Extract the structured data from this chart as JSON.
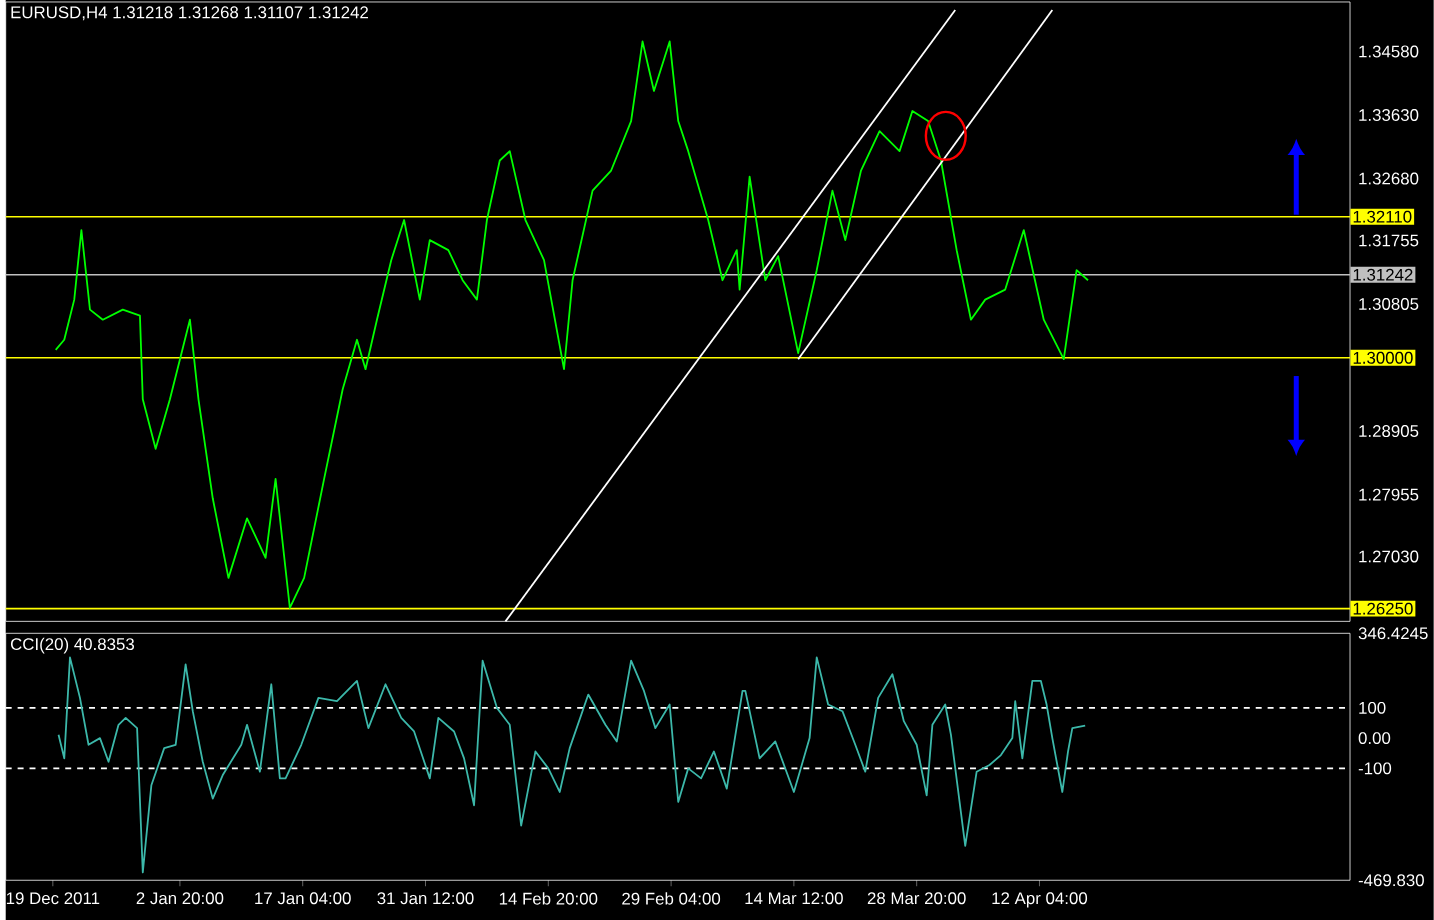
{
  "chart_data": [
    {
      "type": "line",
      "title": "EURUSD,H4  1.31218 1.31268 1.31107 1.31242",
      "xlim": [
        "2011-12-13T12:00",
        "2012-05-18T10:00"
      ],
      "ylim": [
        1.2606,
        1.3532
      ],
      "tick_labels": "y",
      "yticks": [
        {
          "value": 1.3458,
          "label": "1.34580"
        },
        {
          "value": 1.3363,
          "label": "1.33630"
        },
        {
          "value": 1.3268,
          "label": "1.32680"
        },
        {
          "value": 1.31755,
          "label": "1.31755"
        },
        {
          "value": 1.30805,
          "label": "1.30805"
        },
        {
          "value": 1.28905,
          "label": "1.28905"
        },
        {
          "value": 1.27955,
          "label": "1.27955"
        },
        {
          "value": 1.2703,
          "label": "1.27030"
        }
      ],
      "ref_lines": [
        {
          "axis": "y",
          "value": 1.3211,
          "label": "1.32110",
          "color": "#ffff00"
        },
        {
          "axis": "y",
          "value": 1.3,
          "label": "1.30000",
          "color": "#ffff00"
        },
        {
          "axis": "y",
          "value": 1.2625,
          "label": "1.26250",
          "color": "#ffff00"
        },
        {
          "axis": "y",
          "value": 1.31242,
          "label": "1.31242",
          "color": "#c0c0c0"
        }
      ],
      "series": [
        {
          "color": "#00ff00",
          "x": [
            "2011-12-19T08:00",
            "2011-12-20T08:00",
            "2011-12-21T12:00",
            "2011-12-22T08:00",
            "2011-12-23T08:00",
            "2011-12-24T20:00",
            "2011-12-27T04:00",
            "2011-12-29T04:00",
            "2011-12-29T12:00",
            "2011-12-31T00:00",
            "2012-01-01T16:00",
            "2012-01-04T00:00",
            "2012-01-05T00:00",
            "2012-01-06T16:00",
            "2012-01-08T12:00",
            "2012-01-10T16:00",
            "2012-01-12T20:00",
            "2012-01-14T00:00",
            "2012-01-15T16:00",
            "2012-01-17T08:00",
            "2012-01-19T16:00",
            "2012-01-21T20:00",
            "2012-01-23T12:00",
            "2012-01-24T12:00",
            "2012-01-25T20:00",
            "2012-01-27T12:00",
            "2012-01-29T00:00",
            "2012-01-30T20:00",
            "2012-02-01T00:00",
            "2012-02-03T04:00",
            "2012-02-04T20:00",
            "2012-02-06T12:00",
            "2012-02-07T16:00",
            "2012-02-09T04:00",
            "2012-02-10T08:00",
            "2012-02-12T04:00",
            "2012-02-14T08:00",
            "2012-02-16T16:00",
            "2012-02-17T16:00",
            "2012-02-20T00:00",
            "2012-02-22T04:00",
            "2012-02-24T12:00",
            "2012-02-25T20:00",
            "2012-02-27T04:00",
            "2012-02-29T00:00",
            "2012-03-01T00:00",
            "2012-03-02T04:00",
            "2012-03-04T12:00",
            "2012-03-06T04:00",
            "2012-03-07T20:00",
            "2012-03-08T04:00",
            "2012-03-09T08:00",
            "2012-03-11T04:00",
            "2012-03-12T16:00",
            "2012-03-15T00:00",
            "2012-03-17T04:00",
            "2012-03-19T00:00",
            "2012-03-20T12:00",
            "2012-03-22T08:00",
            "2012-03-24T12:00",
            "2012-03-26T20:00",
            "2012-03-28T08:00",
            "2012-03-30T04:00",
            "2012-03-31T16:00",
            "2012-04-02T12:00",
            "2012-04-04T04:00",
            "2012-04-05T20:00",
            "2012-04-08T04:00",
            "2012-04-10T08:00",
            "2012-04-12T16:00",
            "2012-04-15T00:00",
            "2012-04-16T12:00",
            "2012-04-17T20:00"
          ],
          "values": [
            1.3012,
            1.3027,
            1.3087,
            1.3191,
            1.3072,
            1.3057,
            1.3072,
            1.3063,
            1.2938,
            1.2864,
            1.2938,
            1.3057,
            1.2938,
            1.279,
            1.2671,
            1.276,
            1.2701,
            1.2819,
            1.2626,
            1.2671,
            1.2819,
            1.2953,
            1.3027,
            1.2983,
            1.3057,
            1.3146,
            1.3206,
            1.3087,
            1.3176,
            1.3161,
            1.3116,
            1.3087,
            1.3206,
            1.3295,
            1.3309,
            1.3206,
            1.3146,
            1.2983,
            1.3116,
            1.325,
            1.328,
            1.3354,
            1.3473,
            1.3399,
            1.3473,
            1.3354,
            1.3309,
            1.3206,
            1.3116,
            1.3161,
            1.3102,
            1.3271,
            1.3116,
            1.3152,
            1.3007,
            1.3131,
            1.325,
            1.3176,
            1.328,
            1.3339,
            1.3309,
            1.3369,
            1.3354,
            1.3295,
            1.3161,
            1.3057,
            1.3087,
            1.3102,
            1.3191,
            1.3057,
            1.2998,
            1.3131,
            1.3116
          ]
        },
        {
          "color": "#ffffff",
          "x": [
            "2012-02-09T20:00",
            "2012-04-02T08:00"
          ],
          "values": [
            1.2606,
            1.352
          ]
        },
        {
          "color": "#ffffff",
          "x": [
            "2012-03-15T00:00",
            "2012-04-13T16:00"
          ],
          "values": [
            1.2998,
            1.352
          ]
        }
      ]
    },
    {
      "type": "line",
      "title": "CCI(20) 40.8353",
      "xlim": [
        "2011-12-13T12:00",
        "2012-05-18T10:00"
      ],
      "ylim": [
        -469.83,
        346.4245
      ],
      "xticks": [
        {
          "value": "2011-12-19T00:00",
          "label": "19 Dec 2011"
        },
        {
          "value": "2012-01-02T20:00",
          "label": "2 Jan 20:00"
        },
        {
          "value": "2012-01-17T04:00",
          "label": "17 Jan 04:00"
        },
        {
          "value": "2012-01-31T12:00",
          "label": "31 Jan 12:00"
        },
        {
          "value": "2012-02-14T20:00",
          "label": "14 Feb 20:00"
        },
        {
          "value": "2012-02-29T04:00",
          "label": "29 Feb 04:00"
        },
        {
          "value": "2012-03-14T12:00",
          "label": "14 Mar 12:00"
        },
        {
          "value": "2012-03-28T20:00",
          "label": "28 Mar 20:00"
        },
        {
          "value": "2012-04-12T04:00",
          "label": "12 Apr 04:00"
        }
      ],
      "yticks": [
        {
          "value": 346.4245,
          "label": "346.4245"
        },
        100,
        {
          "value": 0,
          "label": "0.00"
        },
        -100,
        {
          "value": -469.83,
          "label": "-469.830"
        }
      ],
      "ref_lines": [
        {
          "axis": "y",
          "value": 100,
          "color": "#ffffff",
          "line_style": "dashed"
        },
        {
          "axis": "y",
          "value": -100,
          "color": "#ffffff",
          "line_style": "dashed"
        }
      ],
      "series": [
        {
          "color": "#3cb8aa",
          "x": [
            "2011-12-19T16:00",
            "2011-12-20T08:00",
            "2011-12-21T00:00",
            "2011-12-22T04:00",
            "2011-12-23T04:00",
            "2011-12-24T12:00",
            "2011-12-25T12:00",
            "2011-12-26T16:00",
            "2011-12-27T12:00",
            "2011-12-28T20:00",
            "2011-12-29T12:00",
            "2011-12-30T12:00",
            "2012-01-01T00:00",
            "2012-01-02T08:00",
            "2012-01-03T12:00",
            "2012-01-04T08:00",
            "2012-01-05T12:00",
            "2012-01-06T16:00",
            "2012-01-07T20:00",
            "2012-01-10T00:00",
            "2012-01-10T16:00",
            "2012-01-12T04:00",
            "2012-01-13T12:00",
            "2012-01-14T12:00",
            "2012-01-15T04:00",
            "2012-01-17T00:00",
            "2012-01-19T00:00",
            "2012-01-21T04:00",
            "2012-01-23T12:00",
            "2012-01-24T20:00",
            "2012-01-26T20:00",
            "2012-01-28T16:00",
            "2012-01-30T04:00",
            "2012-02-01T00:00",
            "2012-02-02T00:00",
            "2012-02-03T20:00",
            "2012-02-05T00:00",
            "2012-02-06T04:00",
            "2012-02-07T04:00",
            "2012-02-08T20:00",
            "2012-02-10T08:00",
            "2012-02-11T16:00",
            "2012-02-13T08:00",
            "2012-02-14T20:00",
            "2012-02-16T04:00",
            "2012-02-17T08:00",
            "2012-02-19T12:00",
            "2012-02-21T12:00",
            "2012-02-22T20:00",
            "2012-02-24T12:00",
            "2012-02-26T00:00",
            "2012-02-27T08:00",
            "2012-02-29T00:00",
            "2012-03-01T00:00",
            "2012-03-02T04:00",
            "2012-03-03T16:00",
            "2012-03-05T04:00",
            "2012-03-06T16:00",
            "2012-03-08T12:00",
            "2012-03-08T20:00",
            "2012-03-10T12:00",
            "2012-03-12T08:00",
            "2012-03-14T12:00",
            "2012-03-16T08:00",
            "2012-03-17T04:00",
            "2012-03-18T12:00",
            "2012-03-20T04:00",
            "2012-03-21T16:00",
            "2012-03-22T20:00",
            "2012-03-24T08:00",
            "2012-03-26T00:00",
            "2012-03-27T08:00",
            "2012-03-28T20:00",
            "2012-03-30T00:00",
            "2012-03-30T16:00",
            "2012-04-01T04:00",
            "2012-04-01T20:00",
            "2012-04-03T12:00",
            "2012-04-04T20:00",
            "2012-04-06T08:00",
            "2012-04-07T16:00",
            "2012-04-09T00:00",
            "2012-04-09T08:00",
            "2012-04-10T04:00",
            "2012-04-11T08:00",
            "2012-04-12T08:00",
            "2012-04-13T00:00",
            "2012-04-13T16:00",
            "2012-04-14T20:00",
            "2012-04-15T12:00",
            "2012-04-16T00:00",
            "2012-04-17T12:00"
          ],
          "values": [
            11,
            -67,
            267,
            133,
            -22,
            0,
            -78,
            44,
            67,
            33,
            -444,
            -156,
            -33,
            -22,
            244,
            89,
            -78,
            -200,
            -122,
            -22,
            44,
            -111,
            178,
            -133,
            -133,
            -22,
            133,
            122,
            189,
            33,
            178,
            67,
            22,
            -133,
            67,
            22,
            -67,
            -222,
            256,
            100,
            44,
            -289,
            -44,
            -100,
            -178,
            -33,
            144,
            44,
            -11,
            256,
            156,
            33,
            111,
            -211,
            -100,
            -133,
            -44,
            -167,
            156,
            156,
            -67,
            -11,
            -178,
            0,
            267,
            111,
            89,
            -22,
            -111,
            133,
            211,
            56,
            -22,
            -189,
            44,
            111,
            11,
            -356,
            -111,
            -89,
            -56,
            0,
            122,
            -67,
            189,
            189,
            111,
            0,
            -178,
            -44,
            33,
            41
          ]
        }
      ]
    }
  ]
}
